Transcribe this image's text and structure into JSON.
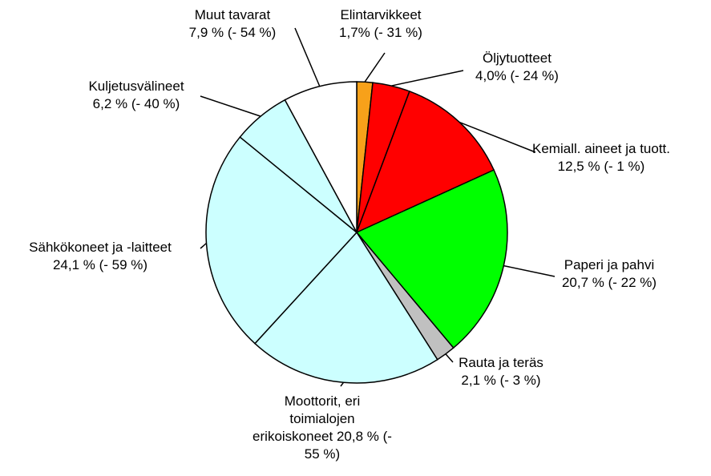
{
  "chart_data": {
    "type": "pie",
    "categories": [
      "Elintarvikkeet",
      "Öljytuotteet",
      "Kemiall. aineet ja tuott.",
      "Paperi ja pahvi",
      "Rauta ja teräs",
      "Moottorit, eri toimialojen erikoiskoneet",
      "Sähkökoneet ja -laitteet",
      "Kuljetusvälineet",
      "Muut tavarat"
    ],
    "values": [
      1.7,
      4.0,
      12.5,
      20.7,
      2.1,
      20.8,
      24.1,
      6.2,
      7.9
    ],
    "value_labels": [
      "1,7% (- 31 %)",
      "4,0% (- 24 %)",
      "12,5 % (- 1 %)",
      "20,7 % (- 22 %)",
      "2,1 % (- 3 %)",
      "20,8 % (- 55 %)",
      "24,1 % (- 59 %)",
      "6,2 % (- 40 %)",
      "7,9 % (- 54 %)"
    ],
    "colors": [
      "#f7a11a",
      "#ff0000",
      "#ff0000",
      "#00ff00",
      "#c0c0c0",
      "#ccffff",
      "#ccffff",
      "#ccffff",
      "#ffffff"
    ]
  }
}
